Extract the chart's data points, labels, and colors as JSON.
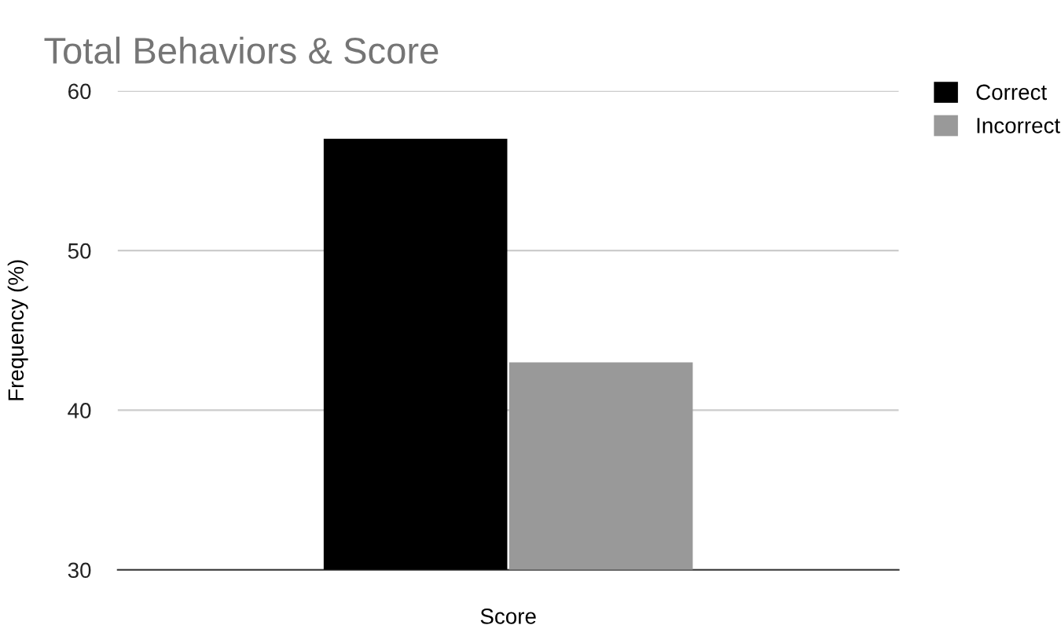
{
  "chart_data": {
    "type": "bar",
    "title": "Total Behaviors & Score",
    "xlabel": "Score",
    "ylabel": "Frequency (%)",
    "categories": [
      null
    ],
    "series": [
      {
        "name": "Correct",
        "color": "#000000",
        "values": [
          57
        ]
      },
      {
        "name": "Incorrect",
        "color": "#999999",
        "values": [
          43
        ]
      }
    ],
    "ylim": [
      30,
      60
    ],
    "yticks": [
      30,
      40,
      50,
      60
    ],
    "grid": "y",
    "legend": "top right"
  }
}
